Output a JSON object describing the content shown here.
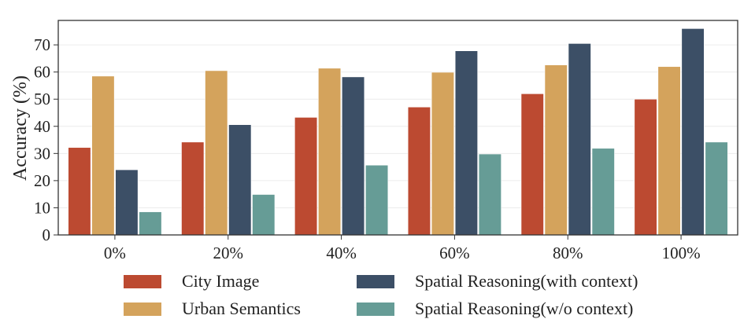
{
  "chart_data": {
    "type": "bar",
    "title": "",
    "xlabel": "",
    "ylabel": "Accuracy (%)",
    "ylim": [
      0,
      79
    ],
    "yticks": [
      0,
      10,
      20,
      30,
      40,
      50,
      60,
      70
    ],
    "grid": true,
    "categories": [
      "0%",
      "20%",
      "40%",
      "60%",
      "80%",
      "100%"
    ],
    "series": [
      {
        "name": "City Image",
        "color": "#bc4a31",
        "values": [
          32.2,
          34.2,
          43.3,
          47.1,
          52.0,
          50.0
        ]
      },
      {
        "name": "Urban Semantics",
        "color": "#d4a35c",
        "values": [
          58.5,
          60.5,
          61.4,
          59.9,
          62.6,
          62.0
        ]
      },
      {
        "name": "Spatial Reasoning(with context)",
        "color": "#3c4f66",
        "values": [
          24.0,
          40.6,
          58.2,
          67.8,
          70.5,
          76.0
        ]
      },
      {
        "name": "Spatial Reasoning(w/o context)",
        "color": "#669c96",
        "values": [
          8.5,
          14.9,
          25.7,
          29.8,
          31.9,
          34.2
        ]
      }
    ],
    "legend": {
      "placement": "bottom",
      "columns": 2
    }
  }
}
